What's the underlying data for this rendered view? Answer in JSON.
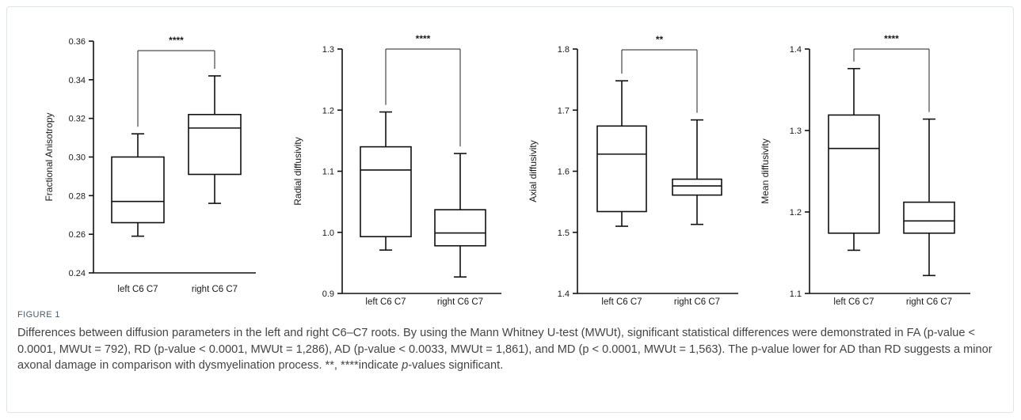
{
  "figure": {
    "label": "FIGURE 1",
    "caption_parts": [
      "Differences between diffusion parameters in the left and right C6–C7 roots. By using the Mann Whitney U-test (MWUt), significant statistical differences were demonstrated in FA (p-value < 0.0001, MWUt = 792), RD (p-value < 0.0001, MWUt = 1,286), AD (p-value < 0.0033, MWUt = 1,861), and MD (p < 0.0001, MWUt = 1,563). The p-value lower for AD than RD suggests a minor axonal damage in comparison with dysmyelination process. **, ****indicate ",
      "p",
      "-values significant."
    ]
  },
  "chart_data": [
    {
      "type": "box",
      "ylabel": "Fractional Anisotropy",
      "ylim": [
        0.24,
        0.36
      ],
      "yticks": [
        0.24,
        0.26,
        0.28,
        0.3,
        0.32,
        0.34,
        0.36
      ],
      "tick_decimals": 2,
      "categories": [
        "left C6 C7",
        "right C6 C7"
      ],
      "boxes": [
        {
          "min": 0.259,
          "q1": 0.266,
          "median": 0.277,
          "q3": 0.3,
          "max": 0.312
        },
        {
          "min": 0.276,
          "q1": 0.291,
          "median": 0.315,
          "q3": 0.322,
          "max": 0.342
        }
      ],
      "significance": "****"
    },
    {
      "type": "box",
      "ylabel": "Radial diffusivity",
      "ylim": [
        0.9,
        1.3
      ],
      "yticks": [
        0.9,
        1.0,
        1.1,
        1.2,
        1.3
      ],
      "tick_decimals": 1,
      "categories": [
        "left C6 C7",
        "right C6 C7"
      ],
      "boxes": [
        {
          "min": 0.971,
          "q1": 0.993,
          "median": 1.102,
          "q3": 1.14,
          "max": 1.197
        },
        {
          "min": 0.927,
          "q1": 0.978,
          "median": 0.999,
          "q3": 1.037,
          "max": 1.129
        }
      ],
      "significance": "****"
    },
    {
      "type": "box",
      "ylabel": "Axial diffusivity",
      "ylim": [
        1.4,
        1.8
      ],
      "yticks": [
        1.4,
        1.5,
        1.6,
        1.7,
        1.8
      ],
      "tick_decimals": 1,
      "categories": [
        "left C6 C7",
        "right C6 C7"
      ],
      "boxes": [
        {
          "min": 1.51,
          "q1": 1.534,
          "median": 1.628,
          "q3": 1.674,
          "max": 1.748
        },
        {
          "min": 1.513,
          "q1": 1.561,
          "median": 1.576,
          "q3": 1.587,
          "max": 1.684
        }
      ],
      "significance": "**"
    },
    {
      "type": "box",
      "ylabel": "Mean diffusivity",
      "ylim": [
        1.1,
        1.4
      ],
      "yticks": [
        1.1,
        1.2,
        1.3,
        1.4
      ],
      "tick_decimals": 1,
      "categories": [
        "left C6 C7",
        "right C6 C7"
      ],
      "boxes": [
        {
          "min": 1.153,
          "q1": 1.174,
          "median": 1.278,
          "q3": 1.319,
          "max": 1.376
        },
        {
          "min": 1.122,
          "q1": 1.174,
          "median": 1.189,
          "q3": 1.212,
          "max": 1.314
        }
      ],
      "significance": "****"
    }
  ]
}
